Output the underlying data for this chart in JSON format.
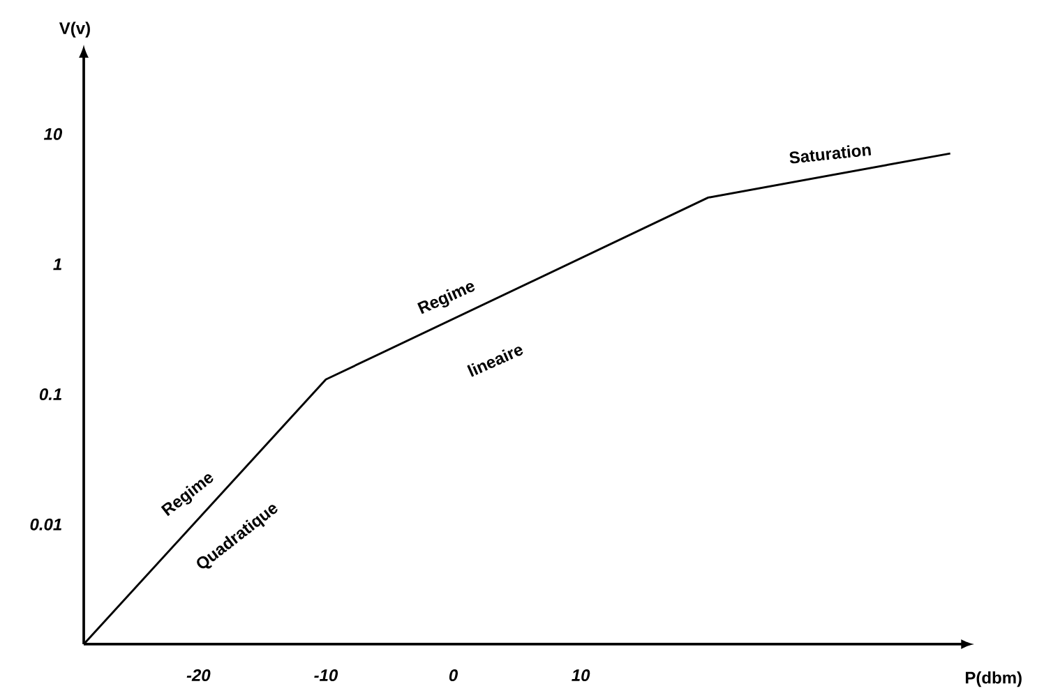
{
  "chart_data": {
    "type": "line",
    "xlabel": "P(dbm)",
    "ylabel": "V(v)",
    "log": "y",
    "x": [
      -29,
      -10,
      20,
      39
    ],
    "values": [
      0.0012,
      0.13,
      3.25,
      7.1
    ],
    "color": "#000000",
    "xlim": [
      -29,
      40
    ],
    "ylim": [
      0.0012,
      40
    ],
    "xticks": [
      -20,
      -10,
      0,
      10
    ],
    "yticks": [
      0.01,
      0.1,
      1,
      10
    ],
    "annotations": [
      "Regime",
      "Quadratique",
      "Regime",
      "lineaire",
      "Saturation"
    ]
  }
}
